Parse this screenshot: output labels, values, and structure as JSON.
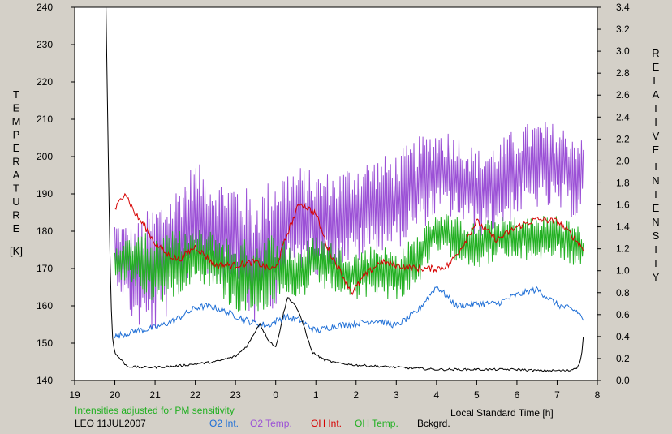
{
  "chart_data": {
    "type": "line",
    "xlabel": "Local Standard Time [h]",
    "x_ticks": [
      "19",
      "20",
      "21",
      "22",
      "23",
      "0",
      "1",
      "2",
      "3",
      "4",
      "5",
      "6",
      "7",
      "8"
    ],
    "x_range": [
      19,
      32
    ],
    "y_left": {
      "label_letters": [
        "T",
        "E",
        "M",
        "P",
        "E",
        "R",
        "A",
        "T",
        "U",
        "R",
        "E"
      ],
      "unit": "[K]",
      "range": [
        140,
        240
      ],
      "ticks": [
        "140",
        "150",
        "160",
        "170",
        "180",
        "190",
        "200",
        "210",
        "220",
        "230",
        "240"
      ]
    },
    "y_right": {
      "label_word1": [
        "R",
        "E",
        "L",
        "A",
        "T",
        "I",
        "V",
        "E"
      ],
      "label_word2": [
        "I",
        "N",
        "T",
        "E",
        "N",
        "S",
        "I",
        "T",
        "Y"
      ],
      "range": [
        0,
        3.4
      ],
      "ticks": [
        "0.0",
        "0.2",
        "0.4",
        "0.6",
        "0.8",
        "1.0",
        "1.2",
        "1.4",
        "1.6",
        "1.8",
        "2.0",
        "2.2",
        "2.4",
        "2.6",
        "2.8",
        "3.0",
        "3.2",
        "3.4"
      ]
    },
    "note": "Intensities adjusted for PM sensitivity",
    "station": "LEO 11JUL2007",
    "series": [
      {
        "name": "O2 Int.",
        "axis": "right",
        "color": "#1f6fd6",
        "x": [
          20.0,
          20.5,
          21.0,
          21.5,
          22.0,
          22.3,
          22.6,
          23.0,
          23.4,
          23.8,
          24.2,
          24.6,
          25.0,
          25.5,
          26.0,
          26.5,
          27.0,
          27.5,
          28.0,
          28.5,
          29.0,
          29.5,
          30.0,
          30.5,
          31.0,
          31.5,
          31.65
        ],
        "y": [
          0.4,
          0.45,
          0.48,
          0.55,
          0.66,
          0.68,
          0.65,
          0.59,
          0.53,
          0.5,
          0.58,
          0.55,
          0.45,
          0.5,
          0.52,
          0.55,
          0.5,
          0.62,
          0.86,
          0.68,
          0.7,
          0.7,
          0.78,
          0.83,
          0.69,
          0.63,
          0.56
        ]
      },
      {
        "name": "O2 Temp.",
        "axis": "left",
        "color": "#9b50d6",
        "x": [
          20.0,
          20.5,
          21.0,
          21.5,
          22.0,
          22.5,
          23.0,
          23.5,
          24.0,
          24.5,
          25.0,
          25.5,
          26.0,
          26.5,
          27.0,
          27.5,
          28.0,
          28.5,
          29.0,
          29.5,
          30.0,
          30.5,
          31.0,
          31.5,
          31.65
        ],
        "y": [
          175,
          168,
          170,
          176,
          185,
          180,
          178,
          172,
          178,
          184,
          182,
          183,
          185,
          187,
          188,
          192,
          196,
          195,
          190,
          192,
          196,
          198,
          197,
          195,
          196
        ],
        "amp": [
          8,
          14,
          18,
          16,
          14,
          14,
          16,
          18,
          18,
          14,
          14,
          13,
          14,
          13,
          13,
          13,
          12,
          12,
          12,
          12,
          12,
          12,
          12,
          12,
          8
        ]
      },
      {
        "name": "OH Int.",
        "axis": "right",
        "color": "#d60000",
        "x": [
          20.0,
          20.25,
          20.5,
          20.75,
          21.0,
          21.3,
          21.6,
          22.0,
          22.5,
          23.0,
          23.5,
          23.8,
          24.0,
          24.3,
          24.6,
          25.0,
          25.3,
          25.6,
          25.9,
          26.2,
          26.6,
          27.0,
          27.5,
          28.0,
          28.3,
          28.6,
          29.0,
          29.5,
          30.0,
          30.5,
          31.0,
          31.3,
          31.65
        ],
        "y": [
          1.55,
          1.72,
          1.52,
          1.4,
          1.25,
          1.15,
          1.1,
          1.22,
          1.05,
          1.05,
          1.08,
          1.02,
          1.02,
          1.35,
          1.62,
          1.52,
          1.2,
          1.0,
          0.8,
          0.95,
          1.08,
          1.05,
          1.02,
          1.02,
          1.05,
          1.2,
          1.45,
          1.28,
          1.4,
          1.47,
          1.45,
          1.35,
          1.2
        ]
      },
      {
        "name": "OH Temp.",
        "axis": "left",
        "color": "#22b022",
        "x": [
          20.0,
          20.5,
          21.0,
          21.5,
          22.0,
          22.5,
          23.0,
          23.5,
          24.0,
          24.5,
          25.0,
          25.5,
          26.0,
          26.5,
          27.0,
          27.5,
          28.0,
          28.5,
          29.0,
          29.5,
          30.0,
          30.5,
          31.0,
          31.5,
          31.65
        ],
        "y": [
          172,
          172,
          170,
          171,
          174,
          172,
          168,
          168,
          170,
          168,
          172,
          170,
          168,
          170,
          168,
          172,
          180,
          178,
          176,
          178,
          178,
          178,
          179,
          176,
          175
        ],
        "amp": [
          5,
          7,
          10,
          9,
          7,
          8,
          10,
          10,
          10,
          8,
          7,
          7,
          7,
          7,
          7,
          7,
          6,
          6,
          6,
          6,
          6,
          6,
          6,
          6,
          5
        ]
      },
      {
        "name": "Bckgrd.",
        "axis": "right",
        "color": "#000000",
        "x": [
          19.78,
          19.82,
          19.86,
          19.9,
          19.95,
          20.0,
          20.3,
          20.6,
          21.0,
          21.5,
          22.0,
          22.5,
          23.0,
          23.3,
          23.6,
          23.8,
          24.0,
          24.1,
          24.2,
          24.3,
          24.5,
          24.7,
          24.9,
          25.2,
          25.5,
          26.0,
          26.5,
          27.0,
          27.5,
          28.0,
          28.5,
          29.0,
          29.5,
          30.0,
          30.5,
          31.0,
          31.3,
          31.5,
          31.6,
          31.65
        ],
        "y": [
          3.4,
          2.4,
          1.5,
          0.75,
          0.35,
          0.25,
          0.13,
          0.12,
          0.12,
          0.13,
          0.15,
          0.17,
          0.22,
          0.32,
          0.52,
          0.38,
          0.3,
          0.45,
          0.62,
          0.76,
          0.68,
          0.5,
          0.26,
          0.19,
          0.16,
          0.14,
          0.13,
          0.12,
          0.11,
          0.1,
          0.1,
          0.1,
          0.1,
          0.1,
          0.09,
          0.09,
          0.09,
          0.12,
          0.2,
          0.4
        ]
      }
    ]
  }
}
